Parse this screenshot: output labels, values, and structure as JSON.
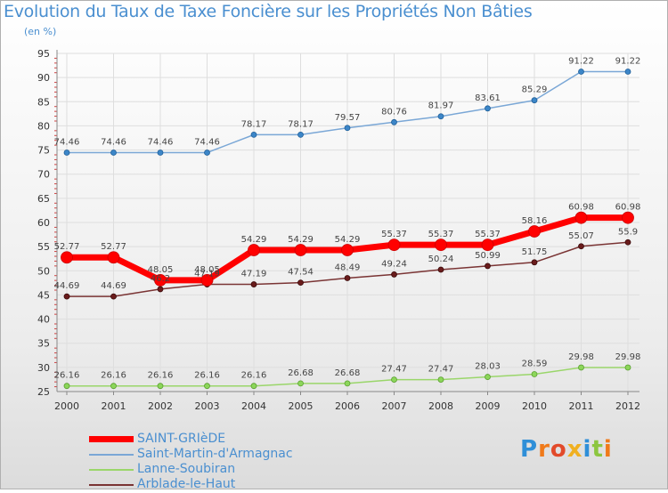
{
  "title": "Evolution du Taux de Taxe Foncière sur les Propriétés Non Bâties",
  "subtitle": "(en %)",
  "logo": "Proxiti",
  "chart_data": {
    "type": "line",
    "title": "Evolution du Taux de Taxe Foncière sur les Propriétés Non Bâties",
    "ylabel": "(en %)",
    "xlabel": "",
    "x": [
      "2000",
      "2001",
      "2002",
      "2003",
      "2004",
      "2005",
      "2006",
      "2007",
      "2008",
      "2009",
      "2010",
      "2011",
      "2012"
    ],
    "ylim": [
      25,
      95
    ],
    "yticks": [
      25,
      30,
      35,
      40,
      45,
      50,
      55,
      60,
      65,
      70,
      75,
      80,
      85,
      90,
      95
    ],
    "grid": true,
    "legend": "bottom-left",
    "series": [
      {
        "name": "SAINT-GRIèDE",
        "color": "#ff0000",
        "values": [
          52.77,
          52.77,
          48.05,
          48.05,
          54.29,
          54.29,
          54.29,
          55.37,
          55.37,
          55.37,
          58.16,
          60.98,
          60.98
        ],
        "labels": [
          "52.77",
          "52.77",
          "48.05",
          "48.05",
          "54.29",
          "54.29",
          "54.29",
          "55.37",
          "55.37",
          "55.37",
          "58.16",
          "60.98",
          "60.98"
        ]
      },
      {
        "name": "Saint-Martin-d'Armagnac",
        "color": "#7aa7d6",
        "values": [
          74.46,
          74.46,
          74.46,
          74.46,
          78.17,
          78.17,
          79.57,
          80.76,
          81.97,
          83.61,
          85.29,
          91.22,
          91.22
        ],
        "labels": [
          "74.46",
          "74.46",
          "74.46",
          "74.46",
          "78.17",
          "78.17",
          "79.57",
          "80.76",
          "81.97",
          "83.61",
          "85.29",
          "91.22",
          "91.22"
        ]
      },
      {
        "name": "Lanne-Soubiran",
        "color": "#9ad66a",
        "values": [
          26.16,
          26.16,
          26.16,
          26.16,
          26.16,
          26.68,
          26.68,
          27.47,
          27.47,
          28.03,
          28.59,
          29.98,
          29.98
        ],
        "labels": [
          "26.16",
          "26.16",
          "26.16",
          "26.16",
          "26.16",
          "26.68",
          "26.68",
          "27.47",
          "27.47",
          "28.03",
          "28.59",
          "29.98",
          "29.98"
        ]
      },
      {
        "name": "Arblade-le-Haut",
        "color": "#7a3434",
        "values": [
          44.69,
          44.69,
          46.2,
          47.19,
          47.19,
          47.54,
          48.49,
          49.24,
          50.24,
          50.99,
          51.75,
          55.07,
          55.9
        ],
        "labels": [
          "44.69",
          "44.69",
          "46.2",
          "47.19",
          "47.19",
          "47.54",
          "48.49",
          "49.24",
          "50.24",
          "50.99",
          "51.75",
          "55.07",
          "55.9"
        ]
      }
    ]
  }
}
